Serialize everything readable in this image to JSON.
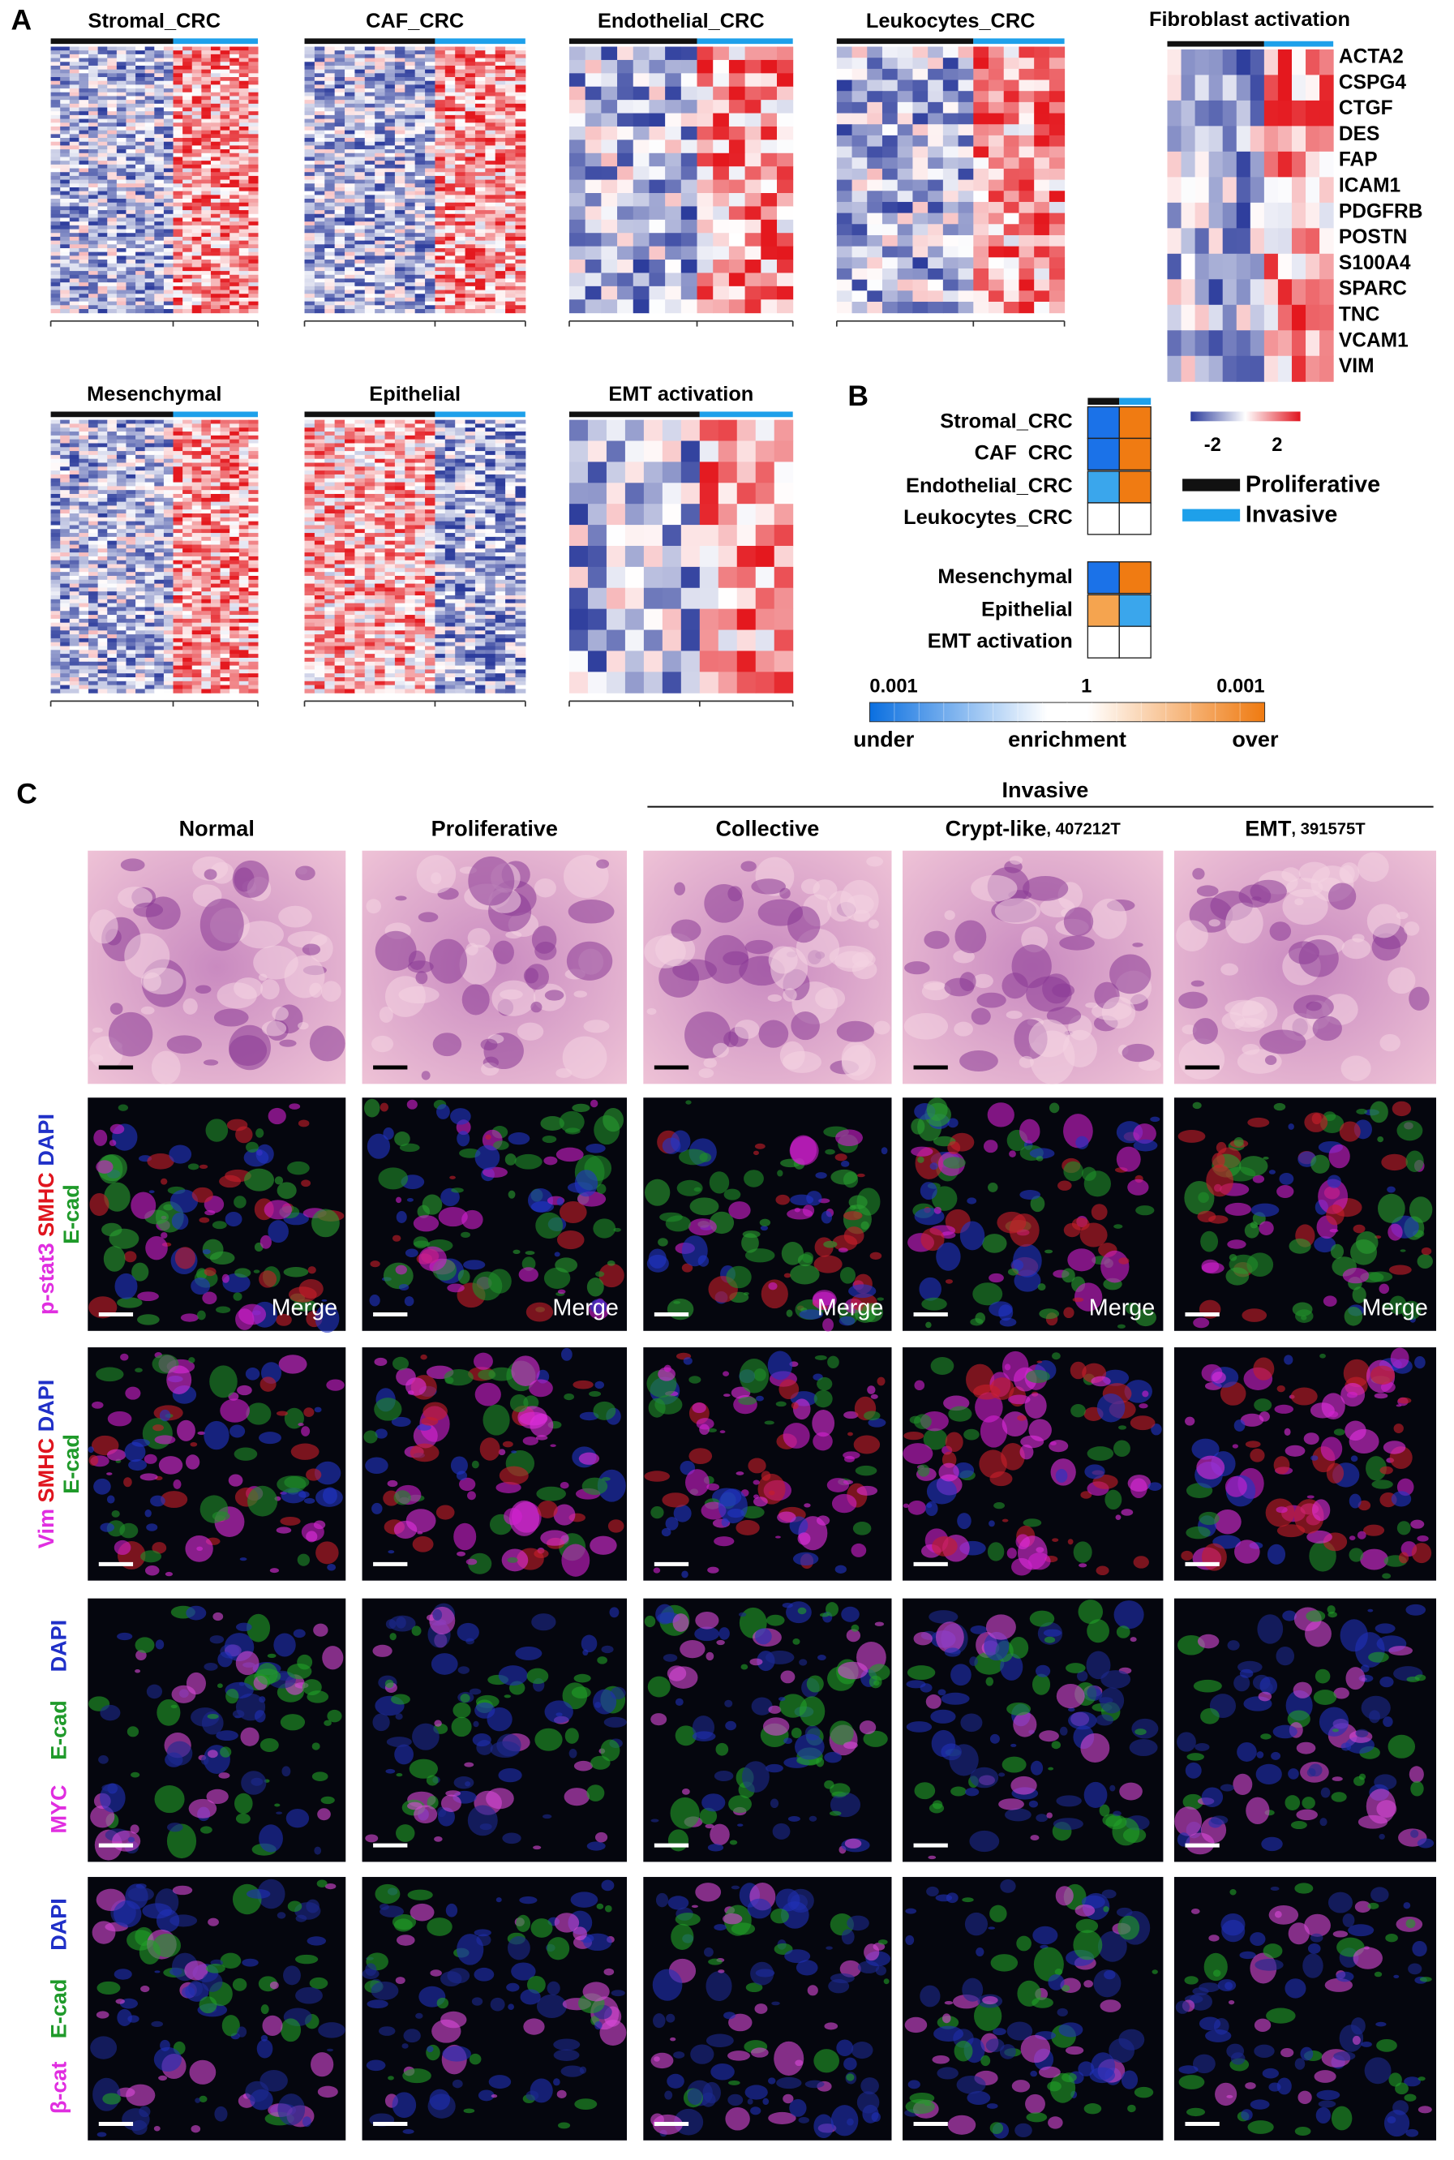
{
  "panel_a": {
    "label": "A",
    "heatmaps": [
      "Stromal_CRC",
      "CAF_CRC",
      "Endothelial_CRC",
      "Leukocytes_CRC",
      "Mesenchymal",
      "Epithelial",
      "EMT activation"
    ],
    "fibroblast": {
      "title": "Fibroblast activation",
      "genes": [
        "ACTA2",
        "CSPG4",
        "CTGF",
        "DES",
        "FAP",
        "ICAM1",
        "PDGFRB",
        "POSTN",
        "S100A4",
        "SPARC",
        "TNC",
        "VCAM1",
        "VIM"
      ]
    }
  },
  "panel_b": {
    "label": "B",
    "rows": [
      "Stromal_CRC",
      "CAF  CRC",
      "Endothelial_CRC",
      "Leukocytes_CRC",
      "Mesenchymal",
      "Epithelial",
      "EMT activation"
    ],
    "scale": [
      -2,
      2
    ],
    "legend": [
      "Proliferative",
      "Invasive"
    ],
    "enrichment": {
      "ticks": [
        0.001,
        1,
        0.001
      ],
      "words": [
        "under",
        "enrichment",
        "over"
      ]
    }
  },
  "panel_c": {
    "label": "C",
    "group": "Invasive",
    "columns": [
      {
        "name": "Normal"
      },
      {
        "name": "Proliferative"
      },
      {
        "name": "Collective"
      },
      {
        "name": "Crypt-like",
        "sample": ", 407212T"
      },
      {
        "name": "EMT",
        "sample": ", 391575T"
      }
    ],
    "row_labels": [
      [
        "p-stat3",
        " SMHC",
        " DAPI",
        "E-cad"
      ],
      [
        "Vim",
        " SMHC",
        " DAPI",
        "E-cad"
      ],
      [
        "MYC",
        "E-cad",
        "DAPI"
      ],
      [
        "β-cat",
        "E-cad",
        "DAPI"
      ]
    ],
    "merge_labels": [
      "Merge",
      "Merge",
      "Merge",
      "Merge",
      "Merge"
    ]
  }
}
